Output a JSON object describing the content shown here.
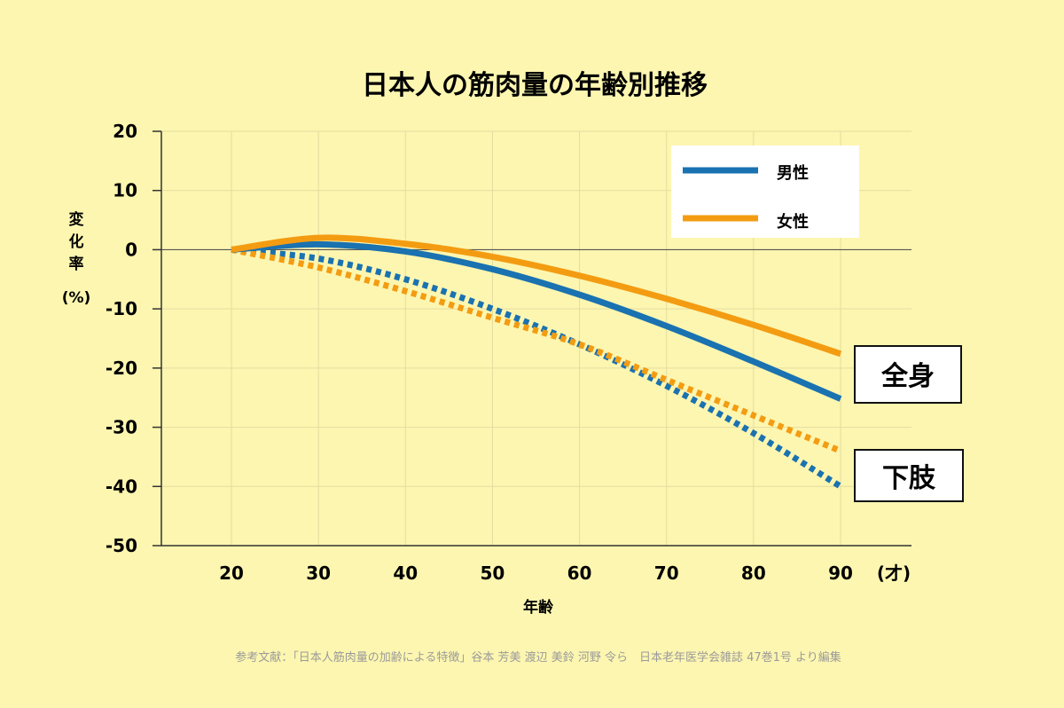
{
  "chart_data": {
    "type": "line",
    "title": "日本人の筋肉量の年齢別推移",
    "xlabel": "年齢",
    "xunit": "(才)",
    "ylabel_chars": [
      "変",
      "化",
      "率"
    ],
    "ylabel_unit": "(%)",
    "xlim": [
      20,
      90
    ],
    "ylim": [
      -50,
      20
    ],
    "x_ticks": [
      20,
      30,
      40,
      50,
      60,
      70,
      80,
      90
    ],
    "y_ticks": [
      20,
      10,
      0,
      -10,
      -20,
      -30,
      -40,
      -50
    ],
    "x_tick_labels": [
      "20",
      "30",
      "40",
      "50",
      "60",
      "70",
      "80",
      "90"
    ],
    "y_tick_labels": [
      "20",
      "10",
      "0",
      "-10",
      "-20",
      "-30",
      "-40",
      "-50"
    ],
    "grid": true,
    "legend_position": "top-right",
    "legend": [
      {
        "label": "男性",
        "color": "#1a72b0"
      },
      {
        "label": "女性",
        "color": "#f39c12"
      }
    ],
    "series": [
      {
        "name": "男性",
        "group": "全身",
        "style": "solid",
        "color": "#1a72b0",
        "x": [
          20,
          30,
          40,
          50,
          60,
          70,
          80,
          90
        ],
        "y": [
          0,
          0.9,
          -0.3,
          -3.3,
          -7.6,
          -12.9,
          -18.9,
          -25.2
        ]
      },
      {
        "name": "女性",
        "group": "全身",
        "style": "solid",
        "color": "#f39c12",
        "x": [
          20,
          30,
          40,
          50,
          60,
          70,
          80,
          90
        ],
        "y": [
          0,
          2.0,
          1.0,
          -1.2,
          -4.4,
          -8.3,
          -12.7,
          -17.6
        ]
      },
      {
        "name": "男性",
        "group": "下肢",
        "style": "dotted",
        "color": "#1a72b0",
        "x": [
          20,
          30,
          40,
          50,
          60,
          70,
          80,
          90
        ],
        "y": [
          0,
          -1.5,
          -5.0,
          -10.0,
          -16.0,
          -23.0,
          -31.0,
          -40.0
        ]
      },
      {
        "name": "女性",
        "group": "下肢",
        "style": "dotted",
        "color": "#f39c12",
        "x": [
          20,
          30,
          40,
          50,
          60,
          70,
          80,
          90
        ],
        "y": [
          0,
          -3.0,
          -7.0,
          -11.5,
          -16.0,
          -22.0,
          -28.0,
          -34.0
        ]
      }
    ],
    "annotations": [
      {
        "text": "全身",
        "target": "solid"
      },
      {
        "text": "下肢",
        "target": "dotted"
      }
    ],
    "source": "参考文献：「日本人筋肉量の加齢による特徴」谷本 芳美 渡辺 美鈴 河野 令ら　日本老年医学会雑誌 47巻1号 より編集"
  }
}
